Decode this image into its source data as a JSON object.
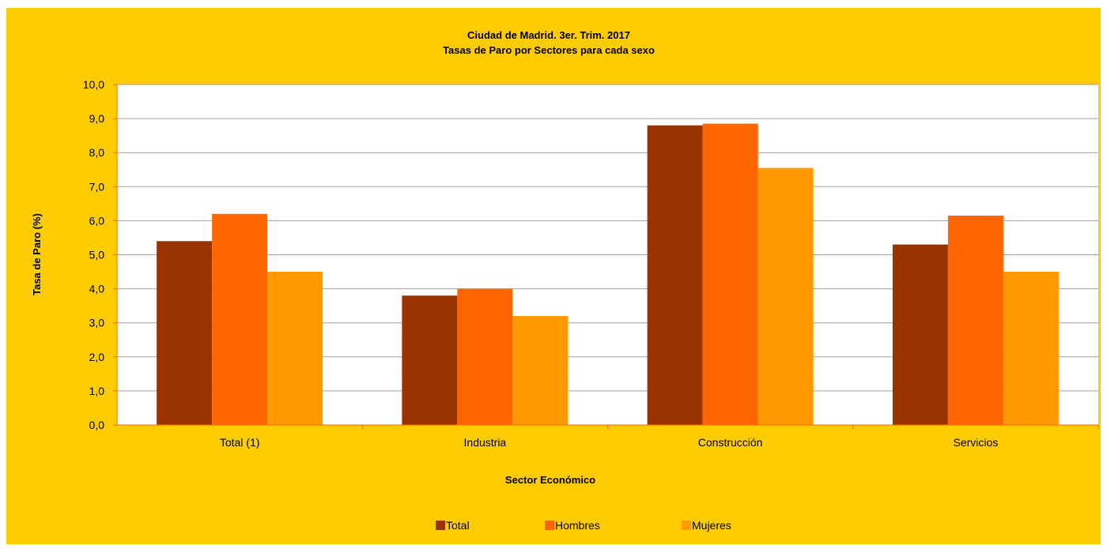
{
  "colors": {
    "background": "#ffcc00",
    "plot_background": "#ffffff",
    "axis": "#ff6600",
    "grid": "#a0a0a0",
    "text": "#000000"
  },
  "chart_data": {
    "type": "bar",
    "title_line1": "Ciudad de Madrid. 3er. Trim. 2017",
    "title_line2": "Tasas de Paro por Sectores para cada sexo",
    "xlabel": "Sector Económico",
    "ylabel": "Tasa de Paro (%)",
    "categories": [
      "Total (1)",
      "Industria",
      "Construcción",
      "Servicios"
    ],
    "series": [
      {
        "name": "Total",
        "color": "#993300",
        "values": [
          5.4,
          3.8,
          8.8,
          5.3
        ]
      },
      {
        "name": "Hombres",
        "color": "#ff6600",
        "values": [
          6.2,
          4.0,
          8.85,
          6.15
        ]
      },
      {
        "name": "Mujeres",
        "color": "#ff9900",
        "values": [
          4.5,
          3.2,
          7.55,
          4.5
        ]
      }
    ],
    "ylim": [
      0,
      10
    ],
    "yticks": [
      "0,0",
      "1,0",
      "2,0",
      "3,0",
      "4,0",
      "5,0",
      "6,0",
      "7,0",
      "8,0",
      "9,0",
      "10,0"
    ],
    "grid": true,
    "legend_position": "bottom"
  }
}
